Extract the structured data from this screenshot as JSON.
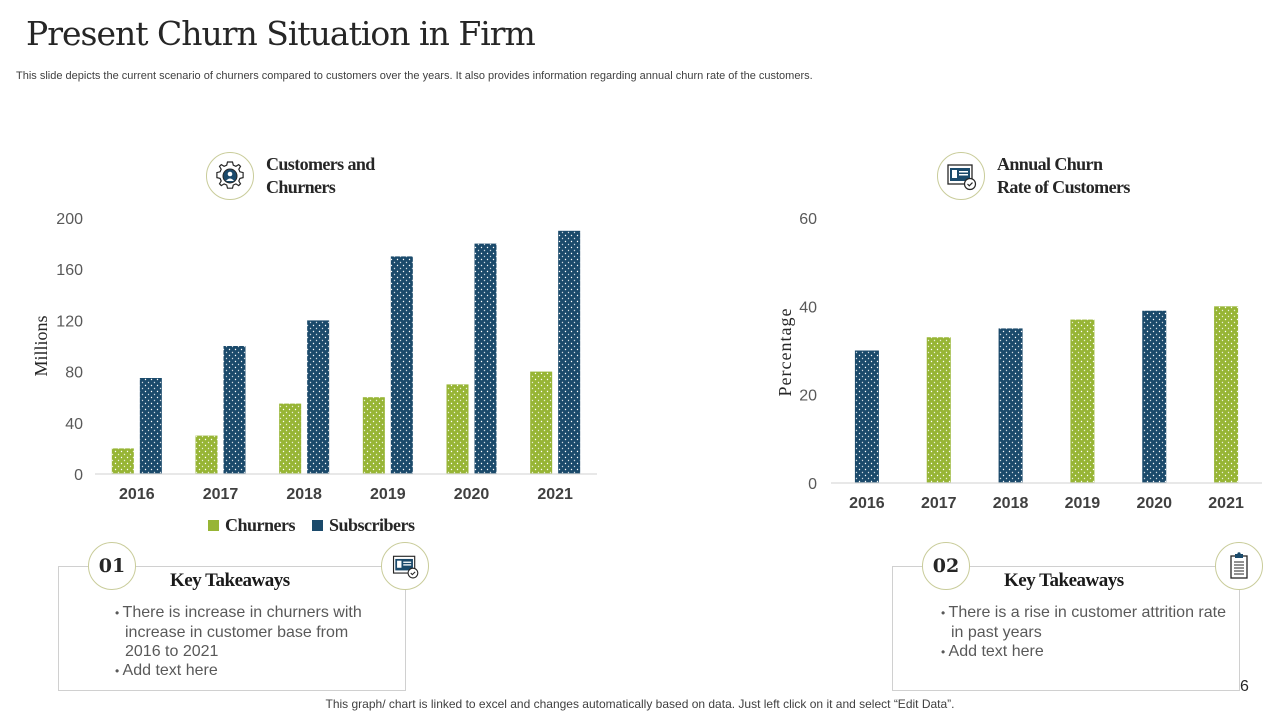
{
  "slide": {
    "title": "Present Churn Situation in Firm",
    "subtitle": "This slide depicts the current scenario of churners compared to customers over the years. It also provides information regarding annual churn rate of the customers.",
    "footnote": "This graph/ chart is linked to excel and changes automatically based on data. Just left click on it and select “Edit Data”.",
    "page_number": "6"
  },
  "colors": {
    "green": "#97b535",
    "navy": "#1b4a6b",
    "axis": "#d9d9d9",
    "circle_border": "#c9cc9a"
  },
  "left_panel": {
    "icon": "gear-user-icon",
    "title_line1": "Customers and",
    "title_line2": "Churners"
  },
  "right_panel": {
    "icon": "id-card-check-icon",
    "title_line1": "Annual Churn",
    "title_line2": "Rate of Customers"
  },
  "chart_data": [
    {
      "type": "bar",
      "title": "Customers and Churners",
      "categories": [
        "2016",
        "2017",
        "2018",
        "2019",
        "2020",
        "2021"
      ],
      "series": [
        {
          "name": "Churners",
          "color": "#97b535",
          "values": [
            20,
            30,
            55,
            60,
            70,
            80
          ]
        },
        {
          "name": "Subscribers",
          "color": "#1b4a6b",
          "values": [
            75,
            100,
            120,
            170,
            180,
            190
          ]
        }
      ],
      "xlabel": "",
      "ylabel": "Millions",
      "ylim": [
        0,
        200
      ],
      "yticks": [
        0,
        40,
        80,
        120,
        160,
        200
      ],
      "grid": false,
      "legend": "bottom"
    },
    {
      "type": "bar",
      "title": "Annual Churn Rate of Customers",
      "categories": [
        "2016",
        "2017",
        "2018",
        "2019",
        "2020",
        "2021"
      ],
      "series": [
        {
          "name": "Churn Rate",
          "values": [
            30,
            33,
            35,
            37,
            39,
            40
          ],
          "colors": [
            "#1b4a6b",
            "#97b535",
            "#1b4a6b",
            "#97b535",
            "#1b4a6b",
            "#97b535"
          ]
        }
      ],
      "xlabel": "",
      "ylabel": "Percentage",
      "ylim": [
        0,
        60
      ],
      "yticks": [
        0,
        20,
        40,
        60
      ],
      "grid": false,
      "legend": "none"
    }
  ],
  "takeaways": [
    {
      "number": "01",
      "title": "Key Takeaways",
      "icon": "id-card-check-icon",
      "bullets": [
        "There is increase in churners with increase in customer base from 2016 to 2021",
        "Add text here"
      ]
    },
    {
      "number": "02",
      "title": "Key Takeaways",
      "icon": "clipboard-icon",
      "bullets": [
        "There is a rise in customer attrition rate in past years",
        "Add text here"
      ]
    }
  ]
}
